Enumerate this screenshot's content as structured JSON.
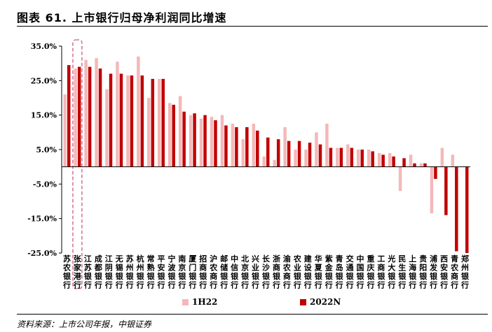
{
  "title": "图表 61. 上市银行归母净利润同比增速",
  "source": "资料来源：上市公司年报，中银证券",
  "colors": {
    "h1": "#f4b8b9",
    "n": "#c00000",
    "highlight": "#d4789f"
  },
  "chart_data": {
    "type": "bar",
    "title": "",
    "xlabel": "",
    "ylabel": "",
    "ylim": [
      -25,
      35
    ],
    "yticks": [
      35,
      25,
      15,
      5,
      -5,
      -15,
      -25
    ],
    "ytick_labels": [
      "35.0%",
      "25.0%",
      "15.0%",
      "5.0%",
      "-5.0%",
      "-15.0%",
      "-25.0%"
    ],
    "grid": false,
    "legend": "bottom",
    "highlight_category": "张家港行",
    "categories": [
      "苏农银行",
      "张家港行",
      "江苏银行",
      "成都银行",
      "江阴银行",
      "无锡银行",
      "苏州银行",
      "杭州银行",
      "常熟银行",
      "平安银行",
      "宁波银行",
      "南京银行",
      "厦门银行",
      "招商银行",
      "沪农商行",
      "邮储银行",
      "中信银行",
      "北京银行",
      "兴业银行",
      "长沙银行",
      "浙商银行",
      "渝农商行",
      "农业银行",
      "建设银行",
      "华夏银行",
      "紫金银行",
      "青岛银行",
      "交通银行",
      "中国银行",
      "重庆银行",
      "工商银行",
      "光大银行",
      "民生银行",
      "上海银行",
      "贵阳银行",
      "浦发银行",
      "西安银行",
      "青农商行",
      "郑州银行"
    ],
    "series": [
      {
        "name": "1H22",
        "values": [
          21.0,
          28.5,
          31.0,
          31.5,
          22.5,
          30.5,
          26.5,
          32.0,
          20.0,
          25.5,
          18.5,
          20.5,
          15.0,
          14.0,
          14.5,
          15.0,
          12.5,
          8.0,
          12.5,
          3.0,
          2.0,
          11.5,
          5.0,
          5.0,
          10.0,
          12.5,
          5.5,
          6.5,
          5.0,
          5.0,
          4.0,
          4.0,
          -7.0,
          3.5,
          1.0,
          -13.5,
          5.5,
          3.5,
          0.0
        ]
      },
      {
        "name": "2022N",
        "values": [
          29.5,
          29.0,
          29.0,
          28.5,
          27.0,
          27.0,
          26.5,
          26.5,
          25.5,
          25.5,
          18.0,
          16.0,
          15.5,
          15.0,
          13.5,
          12.0,
          11.5,
          11.5,
          10.5,
          8.5,
          8.0,
          7.5,
          7.5,
          7.0,
          6.5,
          5.5,
          5.5,
          5.5,
          5.0,
          4.5,
          3.5,
          3.0,
          2.5,
          1.0,
          1.0,
          -3.5,
          -14.0,
          -24.5,
          -25.0
        ]
      }
    ]
  }
}
